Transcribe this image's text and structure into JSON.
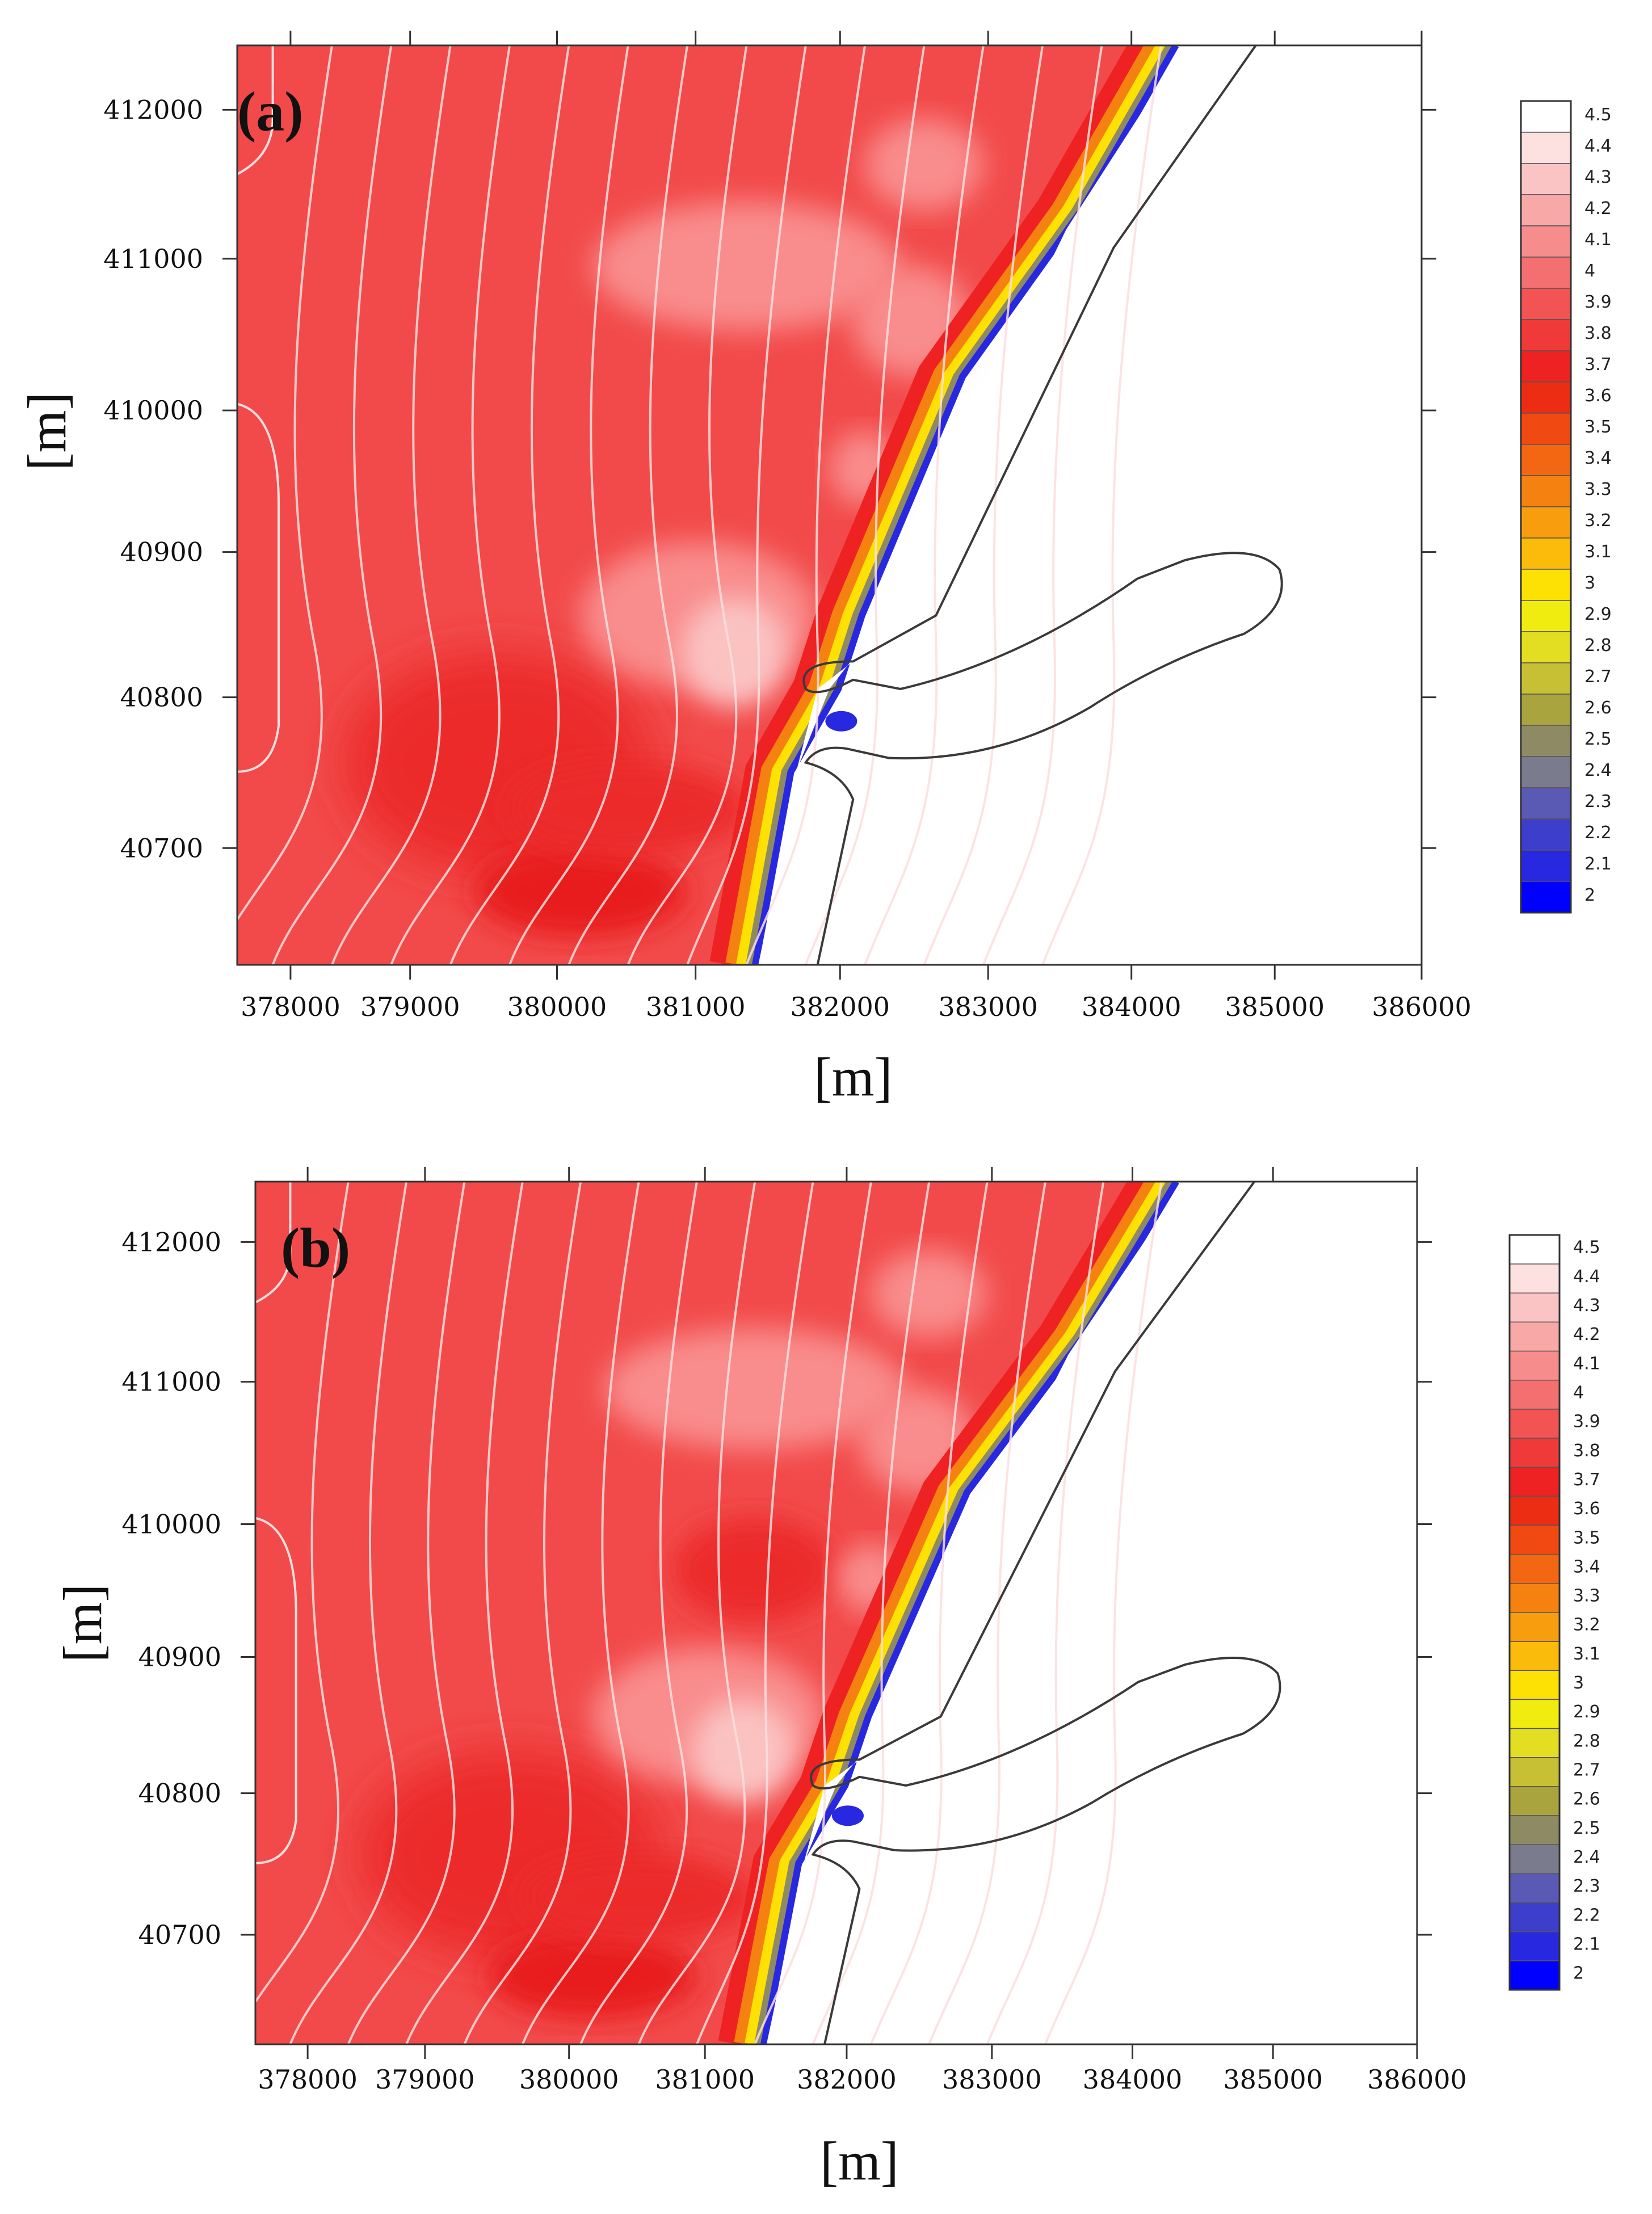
{
  "chart_data": [
    {
      "type": "heatmap",
      "panel_label": "(a)",
      "xlabel": "[m]",
      "ylabel": "[m]",
      "x_ticks": [
        "378000",
        "379000",
        "380000",
        "381000",
        "382000",
        "383000",
        "384000",
        "385000",
        "386000"
      ],
      "y_ticks": [
        "412000",
        "411000",
        "410000",
        "40900",
        "40800",
        "40700"
      ],
      "colorbar_labels": [
        "4.5",
        "4.4",
        "4.3",
        "4.2",
        "4.1",
        "4",
        "3.9",
        "3.8",
        "3.7",
        "3.6",
        "3.5",
        "3.4",
        "3.3",
        "3.2",
        "3.1",
        "3",
        "2.9",
        "2.8",
        "2.7",
        "2.6",
        "2.5",
        "2.4",
        "2.3",
        "2.2",
        "2.1",
        "2"
      ],
      "colorbar_colors": [
        "#ffffff",
        "#fde0e0",
        "#fbc4c4",
        "#f9a8a8",
        "#f78c8c",
        "#f46f6f",
        "#f25454",
        "#f03a3a",
        "#ee2222",
        "#ec2d14",
        "#f04a12",
        "#f36612",
        "#f58210",
        "#f89e0e",
        "#fbbb0a",
        "#fde004",
        "#f0ec10",
        "#e3de22",
        "#c8c034",
        "#a9a43e",
        "#8e8b64",
        "#7b7b8e",
        "#5a5ab4",
        "#3e3ecc",
        "#2828e0",
        "#0000ff"
      ]
    },
    {
      "type": "heatmap",
      "panel_label": "(b)",
      "xlabel": "[m]",
      "ylabel": "[m]",
      "x_ticks": [
        "378000",
        "379000",
        "380000",
        "381000",
        "382000",
        "383000",
        "384000",
        "385000",
        "386000"
      ],
      "y_ticks": [
        "412000",
        "411000",
        "410000",
        "40900",
        "40800",
        "40700"
      ],
      "colorbar_labels": [
        "4.5",
        "4.4",
        "4.3",
        "4.2",
        "4.1",
        "4",
        "3.9",
        "3.8",
        "3.7",
        "3.6",
        "3.5",
        "3.4",
        "3.3",
        "3.2",
        "3.1",
        "3",
        "2.9",
        "2.8",
        "2.7",
        "2.6",
        "2.5",
        "2.4",
        "2.3",
        "2.2",
        "2.1",
        "2"
      ],
      "colorbar_colors": [
        "#ffffff",
        "#fde0e0",
        "#fbc4c4",
        "#f9a8a8",
        "#f78c8c",
        "#f46f6f",
        "#f25454",
        "#f03a3a",
        "#ee2222",
        "#ec2d14",
        "#f04a12",
        "#f36612",
        "#f58210",
        "#f89e0e",
        "#fbbb0a",
        "#fde004",
        "#f0ec10",
        "#e3de22",
        "#c8c034",
        "#a9a43e",
        "#8e8b64",
        "#7b7b8e",
        "#5a5ab4",
        "#3e3ecc",
        "#2828e0",
        "#0000ff"
      ]
    }
  ],
  "colors": {
    "field_base": "#f24a4a",
    "field_dark": "#ec2a2a",
    "field_light": "#f98c8c",
    "field_lightest": "#fbc2c2",
    "contour": "#fbdede",
    "shoreline": "#3a3a3a"
  }
}
